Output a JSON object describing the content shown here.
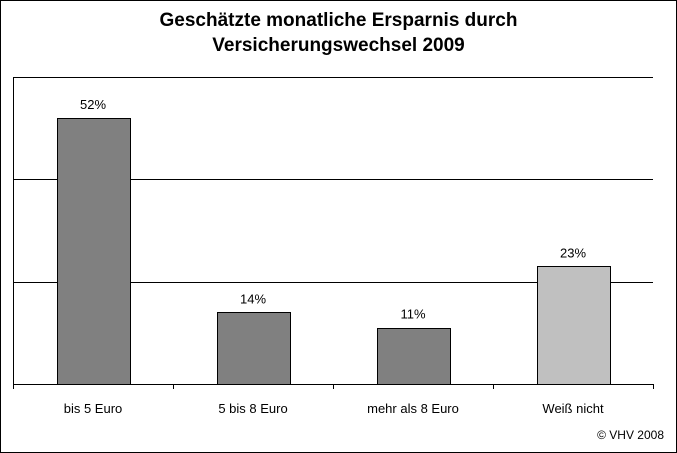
{
  "chart_data": {
    "type": "bar",
    "title_lines": [
      "Geschätzte monatliche Ersparnis durch",
      "Versicherungswechsel 2009"
    ],
    "categories": [
      "bis 5 Euro",
      "5 bis 8 Euro",
      "mehr als 8 Euro",
      "Weiß nicht"
    ],
    "values": [
      52,
      14,
      11,
      23
    ],
    "value_labels": [
      "52%",
      "14%",
      "11%",
      "23%"
    ],
    "bar_colors": [
      "#808080",
      "#808080",
      "#808080",
      "#c0c0c0"
    ],
    "ylim": [
      0,
      60
    ],
    "gridlines": [
      20,
      40,
      60
    ],
    "grid": true,
    "legend": "none"
  },
  "footer": {
    "copyright": "© VHV 2008"
  }
}
